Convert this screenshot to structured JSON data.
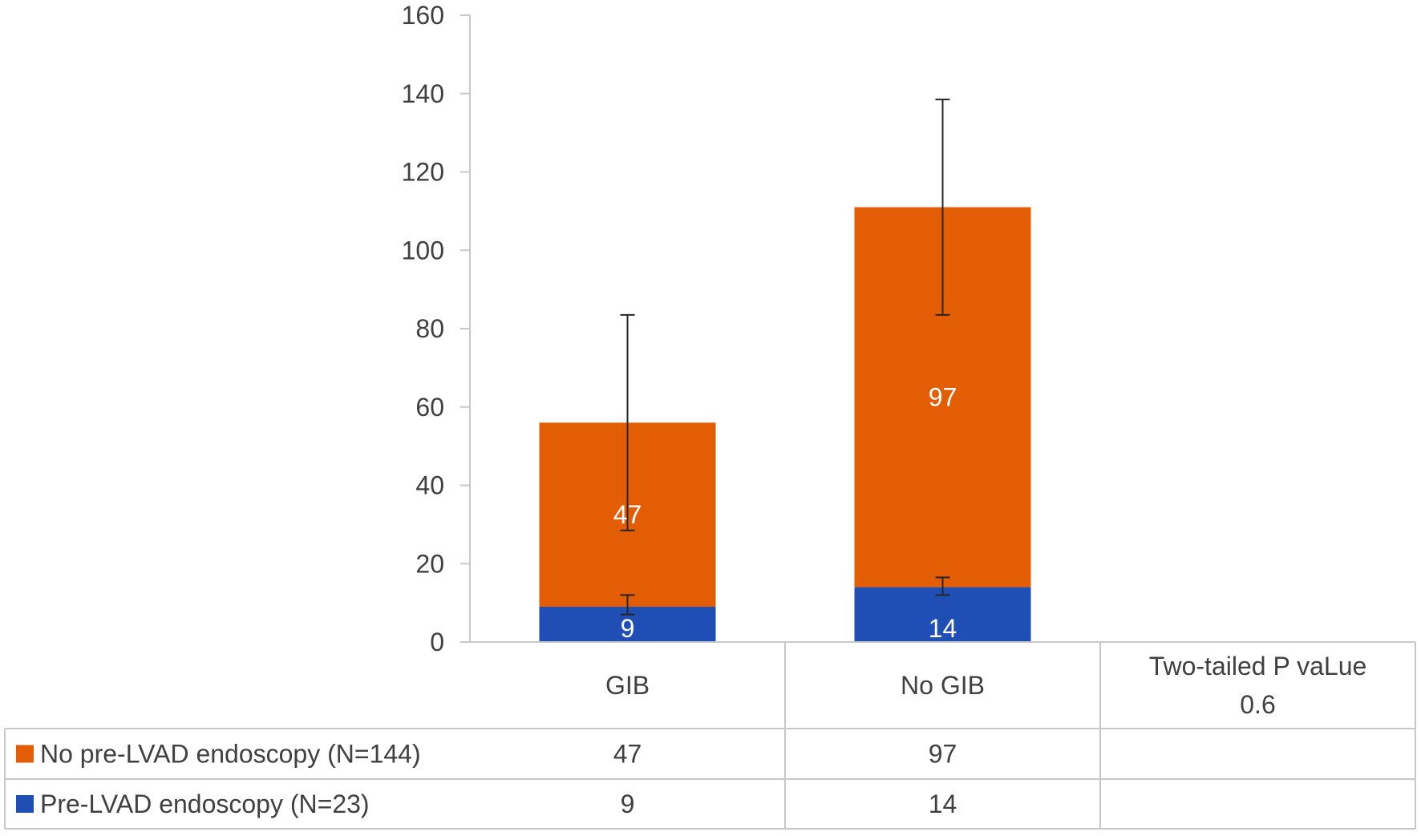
{
  "chart_data": {
    "type": "bar",
    "stacked": true,
    "categories": [
      "GIB",
      "No GIB"
    ],
    "series": [
      {
        "name": "Pre-LVAD endoscopy (N=23)",
        "color": "#1f4fb4",
        "values": [
          9,
          14
        ],
        "error_low": [
          7,
          12
        ],
        "error_high": [
          12,
          16.5
        ]
      },
      {
        "name": "No pre-LVAD endoscopy (N=144)",
        "color": "#e35d05",
        "values": [
          47,
          97
        ],
        "error_low": [
          28.5,
          83.5
        ],
        "error_high": [
          83.5,
          138.5
        ]
      }
    ],
    "ylim": [
      0,
      160
    ],
    "yticks": [
      "0",
      "20",
      "40",
      "60",
      "80",
      "100",
      "120",
      "140",
      "160"
    ],
    "grid": false,
    "legend": "data-table",
    "table": {
      "extra_column_header": "Two-tailed P vaLue",
      "extra_column_value": "0.6",
      "rows": [
        {
          "label": "No pre-LVAD endoscopy (N=144)",
          "color": "#e35d05",
          "values": [
            "47",
            "97",
            ""
          ]
        },
        {
          "label": "Pre-LVAD endoscopy (N=23)",
          "color": "#1f4fb4",
          "values": [
            "9",
            "14",
            ""
          ]
        }
      ]
    }
  }
}
